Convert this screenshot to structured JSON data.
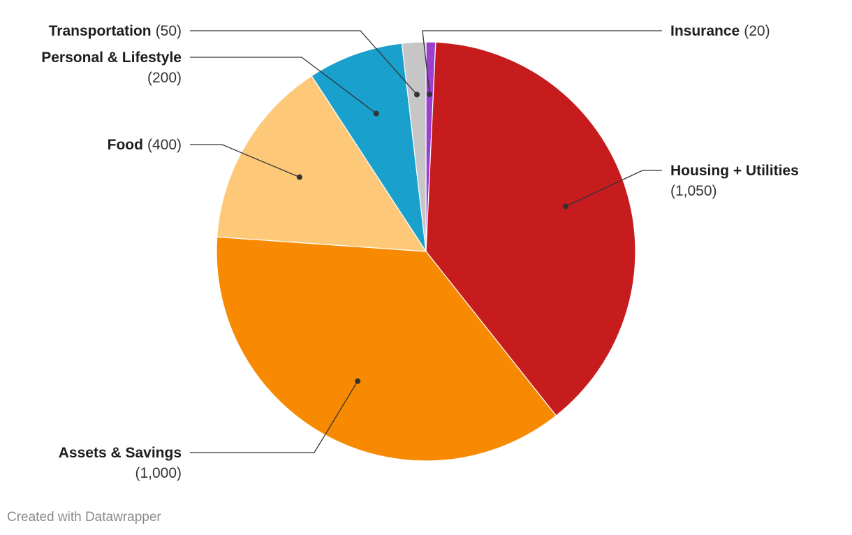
{
  "chart_data": {
    "type": "pie",
    "title": "",
    "slices": [
      {
        "label": "Insurance",
        "value": 20,
        "value_label": "(20)",
        "color": "#9b3fd1"
      },
      {
        "label": "Housing + Utilities",
        "value": 1050,
        "value_label": "(1,050)",
        "color": "#c71c1e"
      },
      {
        "label": "Assets & Savings",
        "value": 1000,
        "value_label": "(1,000)",
        "color": "#f78a00"
      },
      {
        "label": "Food",
        "value": 400,
        "value_label": "(400)",
        "color": "#fdc979"
      },
      {
        "label": "Personal & Lifestyle",
        "value": 200,
        "value_label": "(200)",
        "color": "#19a0cc"
      },
      {
        "label": "Transportation",
        "value": 50,
        "value_label": "(50)",
        "color": "#c6c6c6"
      }
    ]
  },
  "footer": {
    "credit": "Created with Datawrapper"
  }
}
